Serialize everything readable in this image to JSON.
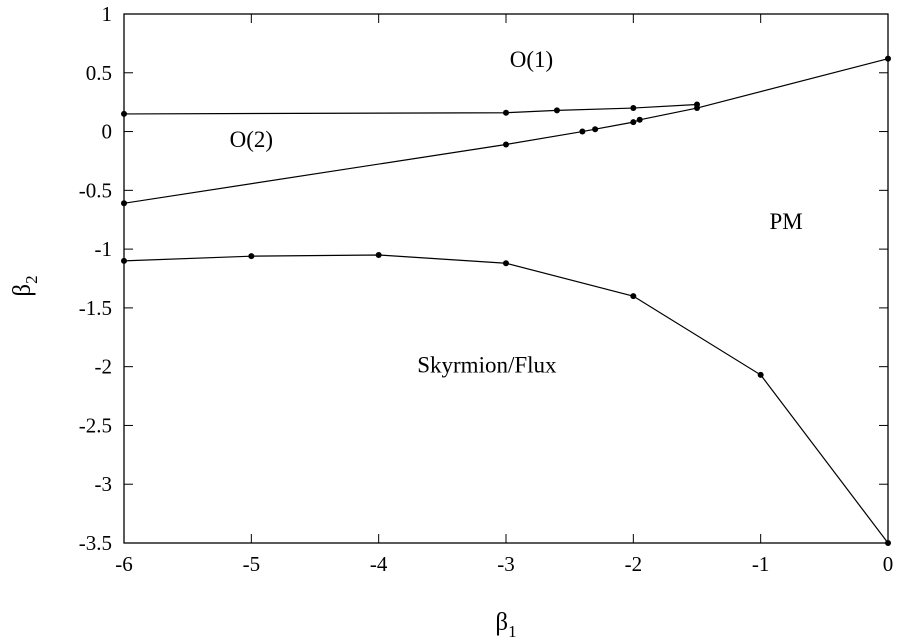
{
  "chart_data": {
    "type": "line",
    "xlabel": "β1",
    "ylabel": "β2",
    "xlim": [
      -6,
      0
    ],
    "ylim": [
      -3.5,
      1
    ],
    "grid": false,
    "x_ticks": [
      -6,
      -5,
      -4,
      -3,
      -2,
      -1,
      0
    ],
    "y_ticks": [
      1,
      0.5,
      0,
      -0.5,
      -1,
      -1.5,
      -2,
      -2.5,
      -3,
      -3.5
    ],
    "x_tick_labels": [
      "-6",
      "-5",
      "-4",
      "-3",
      "-2",
      "-1",
      "0"
    ],
    "y_tick_labels": [
      "1",
      "0.5",
      "0",
      "-0.5",
      "-1",
      "-1.5",
      "-2",
      "-2.5",
      "-3",
      "-3.5"
    ],
    "series": [
      {
        "x": [
          -6,
          -3,
          -2.6,
          -2,
          -1.5
        ],
        "y": [
          0.15,
          0.16,
          0.18,
          0.2,
          0.23
        ]
      },
      {
        "x": [
          -6,
          -3,
          -2.4,
          -2.3,
          -2,
          -1.95,
          -1.5,
          0
        ],
        "y": [
          -0.61,
          -0.11,
          0.0,
          0.02,
          0.08,
          0.1,
          0.2,
          0.62
        ]
      },
      {
        "x": [
          -6,
          -5,
          -4,
          -3,
          -2,
          -1,
          0
        ],
        "y": [
          -1.1,
          -1.06,
          -1.05,
          -1.12,
          -1.4,
          -2.07,
          -3.5
        ]
      }
    ],
    "annotations": [
      {
        "text": "O(1)",
        "x": -2.8,
        "y": 0.55
      },
      {
        "text": "O(2)",
        "x": -5.0,
        "y": -0.13
      },
      {
        "text": "PM",
        "x": -0.8,
        "y": -0.83
      },
      {
        "text": "Skyrmion/Flux",
        "x": -3.15,
        "y": -2.05
      }
    ]
  }
}
